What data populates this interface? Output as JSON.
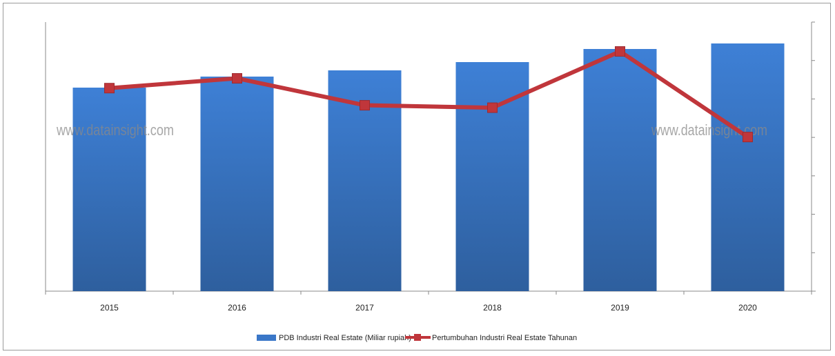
{
  "chart_data": {
    "type": "bar",
    "title": "",
    "categories": [
      "2015",
      "2016",
      "2017",
      "2018",
      "2019",
      "2020"
    ],
    "series": [
      {
        "name": "PDB Industri Real Estate (Miliar rupiah)",
        "kind": "bar",
        "axis": "left",
        "color": "#3a77c8",
        "values": [
          295,
          311,
          320,
          332,
          351,
          359
        ]
      },
      {
        "name": "Pertumbuhan Industri Real Estate Tahunan",
        "kind": "line",
        "axis": "right",
        "color": "#c0363b",
        "values": [
          4.3,
          4.7,
          3.6,
          3.5,
          5.8,
          2.3
        ]
      }
    ],
    "ylim_left": [
      0,
      390
    ],
    "ylim_right": [
      -4,
      7
    ],
    "grid": false,
    "legend": "bottom",
    "watermark": "www.datainsight.com"
  }
}
